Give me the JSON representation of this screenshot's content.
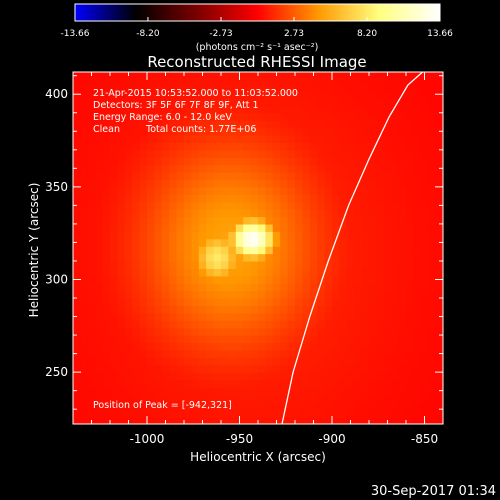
{
  "chart_data": {
    "type": "heatmap",
    "title": "Reconstructed RHESSI Image",
    "xlabel": "Heliocentric X (arcsec)",
    "ylabel": "Heliocentric Y (arcsec)",
    "xlim": [
      -1040,
      -840
    ],
    "ylim": [
      222,
      412
    ],
    "x_ticks": [
      "-1000",
      "-950",
      "-900",
      "-850"
    ],
    "x_tick_values": [
      -1000,
      -950,
      -900,
      -850
    ],
    "y_ticks": [
      "250",
      "300",
      "350",
      "400"
    ],
    "y_tick_values": [
      250,
      300,
      350,
      400
    ],
    "colorbar": {
      "unit_label": "(photons cm⁻² s⁻¹ asec⁻²)",
      "min": -13.66,
      "max": 13.66,
      "tick_labels": [
        "-13.66",
        "-8.20",
        "-2.73",
        "2.73",
        "8.20",
        "13.66"
      ],
      "tick_values": [
        -13.66,
        -8.2,
        -2.73,
        2.73,
        8.2,
        13.66
      ],
      "colormap": [
        "#0000ff",
        "#000000",
        "#7a0000",
        "#ff0000",
        "#ff9900",
        "#ffff80",
        "#ffffff"
      ]
    },
    "annotations": [
      "21-Apr-2015 10:53:52.000 to 11:03:52.000",
      "Detectors: 3F 5F 6F 7F 8F 9F, Att 1",
      "Energy Range: 6.0 - 12.0 keV",
      "Clean",
      "Total counts: 1.77E+06"
    ],
    "peak_label": "Position of Peak = [-942,321]",
    "peak": {
      "x": -942,
      "y": 321
    },
    "sources": [
      {
        "x": -943,
        "y": 322,
        "peak": 13.66,
        "sigma_x": 9,
        "sigma_y": 8
      },
      {
        "x": -962,
        "y": 312,
        "peak": 8.2,
        "sigma_x": 10,
        "sigma_y": 11
      },
      {
        "x": -955,
        "y": 318,
        "peak": 5.0,
        "sigma_x": 34,
        "sigma_y": 40
      }
    ],
    "limb_curve": {
      "x": [
        -927,
        -921,
        -912,
        -902,
        -891,
        -880,
        -869,
        -859,
        -851
      ],
      "y": [
        222,
        250,
        280,
        310,
        340,
        365,
        388,
        405,
        412
      ]
    },
    "grid": false
  },
  "footer": {
    "timestamp": "30-Sep-2017 01:34"
  },
  "colors": {
    "background": "#000000",
    "text": "#ffffff"
  }
}
